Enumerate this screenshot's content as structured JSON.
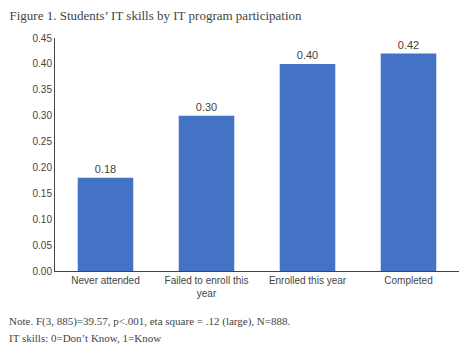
{
  "chart_data": {
    "type": "bar",
    "title": "Figure 1. Students’ IT skills by IT program participation",
    "categories": [
      "Never attended",
      "Failed to enroll this\nyear",
      "Enrolled this year",
      "Completed"
    ],
    "values": [
      0.18,
      0.3,
      0.4,
      0.42
    ],
    "value_labels": [
      "0.18",
      "0.30",
      "0.40",
      "0.42"
    ],
    "color": "#4472C4",
    "ylim": [
      0,
      0.45
    ],
    "yticks": [
      {
        "value": 0,
        "label": "0.00"
      },
      0.05,
      {
        "value": 0.1,
        "label": "0.10"
      },
      0.15,
      {
        "value": 0.2,
        "label": "0.20"
      },
      0.25,
      {
        "value": 0.3,
        "label": "0.30"
      },
      0.35,
      {
        "value": 0.4,
        "label": "0.40"
      },
      0.45
    ],
    "grid": false,
    "data_labels": true,
    "annotations": [
      "Note. F(3, 885)=39.57, p<.001, eta square = .12 (large), N=888.",
      "IT skills: 0=Don’t Know, 1=Know"
    ]
  }
}
